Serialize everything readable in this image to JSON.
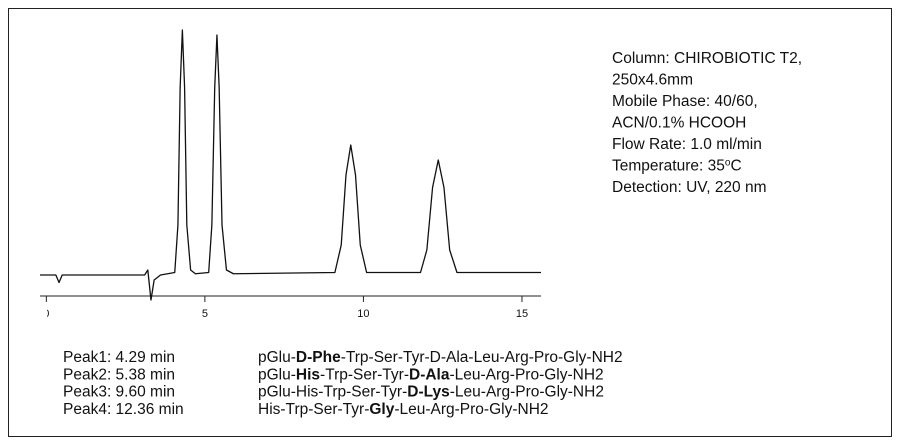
{
  "chart_data": {
    "type": "line",
    "x": [
      -0.2,
      0.3,
      0.4,
      0.5,
      3.1,
      3.2,
      3.3,
      3.4,
      3.6,
      4.05,
      4.15,
      4.22,
      4.29,
      4.36,
      4.43,
      4.55,
      4.7,
      5.12,
      5.22,
      5.31,
      5.38,
      5.45,
      5.54,
      5.68,
      5.9,
      9.1,
      9.3,
      9.45,
      9.6,
      9.75,
      9.9,
      10.1,
      11.8,
      12.0,
      12.18,
      12.36,
      12.54,
      12.72,
      12.95,
      15.6
    ],
    "series": [
      {
        "color": "#111111",
        "values": [
          0,
          0,
          -0.03,
          0,
          0,
          0.02,
          -0.1,
          -0.02,
          0,
          0.01,
          0.2,
          0.75,
          0.98,
          0.75,
          0.2,
          0.02,
          0.005,
          0.01,
          0.2,
          0.75,
          0.96,
          0.75,
          0.2,
          0.02,
          0.005,
          0.01,
          0.12,
          0.4,
          0.52,
          0.4,
          0.12,
          0.01,
          0.01,
          0.1,
          0.35,
          0.46,
          0.35,
          0.1,
          0.01,
          0.01
        ]
      }
    ],
    "xlim": [
      -0.2,
      15.6
    ],
    "xticks": [
      0,
      5,
      10,
      15
    ],
    "ylim": [
      -0.1,
      1.0
    ]
  },
  "conditions": [
    [
      {
        "text": "Column: CHIROBIOTIC T2,"
      }
    ],
    [
      {
        "text": "250x4.6mm"
      }
    ],
    [
      {
        "text": "Mobile Phase: 40/60,"
      }
    ],
    [
      {
        "text": "ACN/0.1% HCOOH"
      }
    ],
    [
      {
        "text": "Flow Rate: 1.0 ml/min"
      }
    ],
    [
      {
        "text": "Temperature: 35"
      },
      {
        "text": "o",
        "sup": true
      },
      {
        "text": "C"
      }
    ],
    [
      {
        "text": "Detection: UV, 220 nm"
      }
    ]
  ],
  "peaks": [
    {
      "label": "Peak1: 4.29 min",
      "sequence": [
        {
          "text": "pGlu-"
        },
        {
          "text": "D-Phe",
          "bold": true
        },
        {
          "text": "-Trp-Ser-Tyr-D-Ala-Leu-Arg-Pro-Gly-NH2"
        }
      ]
    },
    {
      "label": "Peak2: 5.38 min",
      "sequence": [
        {
          "text": "pGlu-"
        },
        {
          "text": "His",
          "bold": true
        },
        {
          "text": "-Trp-Ser-Tyr-"
        },
        {
          "text": "D-Ala",
          "bold": true
        },
        {
          "text": "-Leu-Arg-Pro-Gly-NH2"
        }
      ]
    },
    {
      "label": "Peak3: 9.60 min",
      "sequence": [
        {
          "text": "pGlu-His-Trp-Ser-Tyr-"
        },
        {
          "text": "D-Lys",
          "bold": true
        },
        {
          "text": "-Leu-Arg-Pro-Gly-NH2"
        }
      ]
    },
    {
      "label": "Peak4: 12.36 min",
      "sequence": [
        {
          "text": "His-Trp-Ser-Tyr-"
        },
        {
          "text": "Gly",
          "bold": true
        },
        {
          "text": "-Leu-Arg-Pro-Gly-NH2"
        }
      ]
    }
  ]
}
